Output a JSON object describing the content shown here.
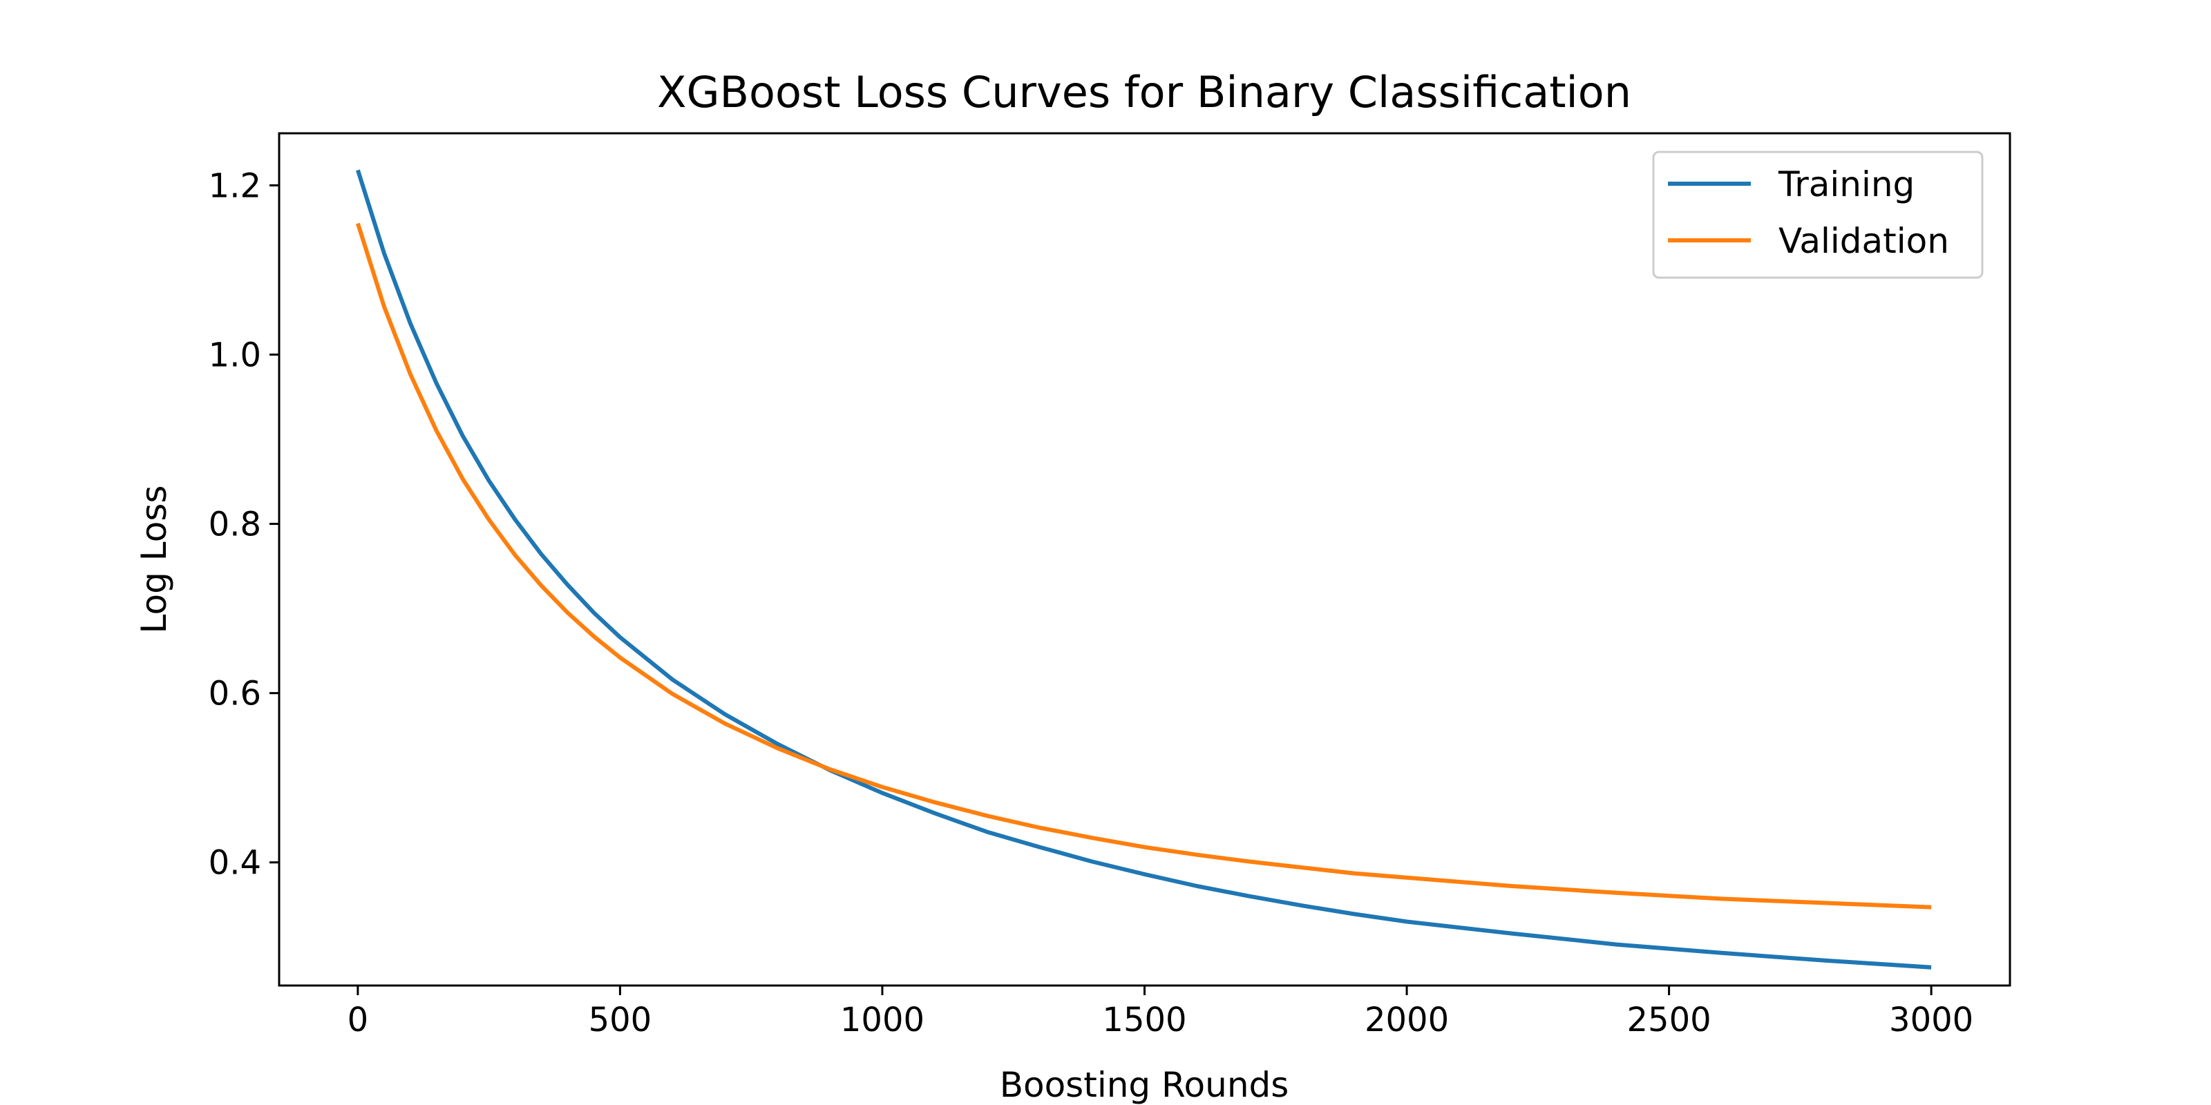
{
  "chart_data": {
    "type": "line",
    "title": "XGBoost Loss Curves for Binary Classification",
    "xlabel": "Boosting Rounds",
    "ylabel": "Log Loss",
    "xlim": [
      -150,
      3150
    ],
    "ylim": [
      0.2545,
      1.2615
    ],
    "xticks": [
      0,
      500,
      1000,
      1500,
      2000,
      2500,
      3000
    ],
    "xtick_labels": [
      "0",
      "500",
      "1000",
      "1500",
      "2000",
      "2500",
      "3000"
    ],
    "yticks": [
      0.4,
      0.6,
      0.8,
      1.0,
      1.2
    ],
    "ytick_labels": [
      "0.4",
      "0.6",
      "0.8",
      "1.0",
      "1.2"
    ],
    "grid": false,
    "legend": "top-right",
    "x": [
      0,
      50,
      100,
      150,
      200,
      250,
      300,
      350,
      400,
      450,
      500,
      600,
      700,
      800,
      900,
      1000,
      1100,
      1200,
      1300,
      1400,
      1500,
      1600,
      1700,
      1800,
      1900,
      2000,
      2200,
      2400,
      2600,
      2800,
      3000
    ],
    "series": [
      {
        "name": "Training",
        "color": "#1f77b4",
        "values": [
          1.218,
          1.12,
          1.037,
          0.966,
          0.904,
          0.851,
          0.805,
          0.764,
          0.728,
          0.695,
          0.666,
          0.616,
          0.575,
          0.54,
          0.509,
          0.482,
          0.458,
          0.436,
          0.418,
          0.401,
          0.386,
          0.372,
          0.36,
          0.349,
          0.339,
          0.33,
          0.316,
          0.303,
          0.293,
          0.284,
          0.276
        ]
      },
      {
        "name": "Validation",
        "color": "#ff7f0e",
        "values": [
          1.155,
          1.057,
          0.977,
          0.91,
          0.853,
          0.805,
          0.763,
          0.727,
          0.695,
          0.667,
          0.642,
          0.599,
          0.564,
          0.535,
          0.51,
          0.489,
          0.471,
          0.455,
          0.441,
          0.429,
          0.418,
          0.409,
          0.401,
          0.394,
          0.387,
          0.382,
          0.372,
          0.364,
          0.357,
          0.352,
          0.347
        ]
      }
    ]
  }
}
